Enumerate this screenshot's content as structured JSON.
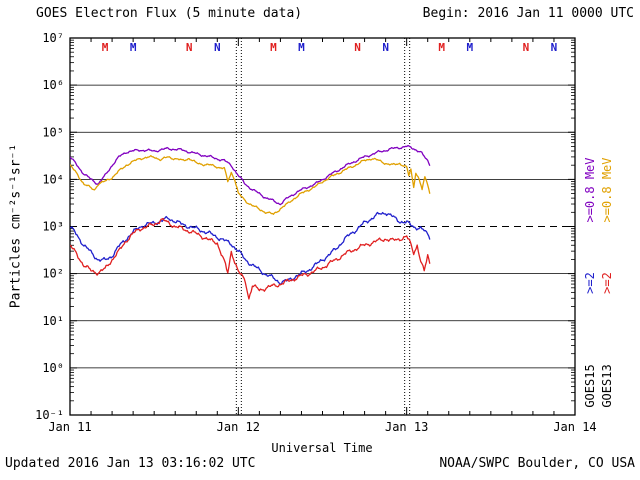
{
  "header": {
    "title": "GOES Electron Flux (5 minute data)",
    "begin_label": "Begin: 2016 Jan 11 0000 UTC"
  },
  "footer": {
    "updated": "Updated 2016 Jan 13 03:16:02 UTC",
    "source": "NOAA/SWPC Boulder, CO USA"
  },
  "right_labels": {
    "goes15_08": ">=0.8 MeV",
    "goes13_08": ">=0.8 MeV",
    "goes15_2": ">=2",
    "goes13_2": ">=2",
    "goes15_name": "GOES15",
    "goes13_name": "GOES13"
  },
  "colors": {
    "goes15_08": "#8000C0",
    "goes13_08": "#E0A000",
    "goes15_2": "#2020CC",
    "goes13_2": "#E02020",
    "axis": "#000000"
  },
  "chart_data": {
    "type": "line",
    "title": "GOES Electron Flux (5 minute data)",
    "xlabel": "Universal Time",
    "ylabel": "Particles cm⁻²s⁻¹sr⁻¹",
    "x_range_hours": [
      0,
      72
    ],
    "y_log_range": [
      -1,
      7
    ],
    "y_scale": "log10",
    "grid": "solid horizontal lines at each decade, dashed at 1000",
    "legend_position": "right, rotated",
    "threshold_flux": 1000,
    "day_boundaries_hours": [
      24,
      48
    ],
    "x_ticks": [
      {
        "t": 0,
        "label": "Jan 11"
      },
      {
        "t": 24,
        "label": "Jan 12"
      },
      {
        "t": 48,
        "label": "Jan 13"
      },
      {
        "t": 72,
        "label": "Jan 14"
      }
    ],
    "y_ticks": [
      {
        "exp": 7,
        "label": "10⁷"
      },
      {
        "exp": 6,
        "label": "10⁶"
      },
      {
        "exp": 5,
        "label": "10⁵"
      },
      {
        "exp": 4,
        "label": "10⁴"
      },
      {
        "exp": 3,
        "label": "10³"
      },
      {
        "exp": 2,
        "label": "10²"
      },
      {
        "exp": 1,
        "label": "10¹"
      },
      {
        "exp": 0,
        "label": "10⁰"
      },
      {
        "exp": -1,
        "label": "10⁻¹"
      }
    ],
    "noon_midnight_markers": [
      {
        "t": 5,
        "label": "M",
        "sat": "GOES13",
        "color": "#E02020"
      },
      {
        "t": 9,
        "label": "M",
        "sat": "GOES15",
        "color": "#2020CC"
      },
      {
        "t": 17,
        "label": "N",
        "sat": "GOES13",
        "color": "#E02020"
      },
      {
        "t": 21,
        "label": "N",
        "sat": "GOES15",
        "color": "#2020CC"
      },
      {
        "t": 29,
        "label": "M",
        "sat": "GOES13",
        "color": "#E02020"
      },
      {
        "t": 33,
        "label": "M",
        "sat": "GOES15",
        "color": "#2020CC"
      },
      {
        "t": 41,
        "label": "N",
        "sat": "GOES13",
        "color": "#E02020"
      },
      {
        "t": 45,
        "label": "N",
        "sat": "GOES15",
        "color": "#2020CC"
      },
      {
        "t": 53,
        "label": "M",
        "sat": "GOES13",
        "color": "#E02020"
      },
      {
        "t": 57,
        "label": "M",
        "sat": "GOES15",
        "color": "#2020CC"
      },
      {
        "t": 65,
        "label": "N",
        "sat": "GOES13",
        "color": "#E02020"
      },
      {
        "t": 69,
        "label": "N",
        "sat": "GOES15",
        "color": "#2020CC"
      }
    ],
    "series": [
      {
        "name": "GOES15 >=0.8 MeV",
        "color": "#8000C0",
        "points": [
          [
            0,
            30000
          ],
          [
            1,
            20000
          ],
          [
            2,
            13000
          ],
          [
            3,
            10000
          ],
          [
            4,
            8000
          ],
          [
            5,
            12000
          ],
          [
            6,
            20000
          ],
          [
            7,
            30000
          ],
          [
            8,
            38000
          ],
          [
            10,
            42000
          ],
          [
            12,
            40000
          ],
          [
            14,
            45000
          ],
          [
            16,
            42000
          ],
          [
            18,
            35000
          ],
          [
            20,
            30000
          ],
          [
            22,
            25000
          ],
          [
            23,
            20000
          ],
          [
            24,
            12000
          ],
          [
            25,
            8000
          ],
          [
            26,
            6000
          ],
          [
            27,
            5000
          ],
          [
            28,
            4000
          ],
          [
            29,
            3500
          ],
          [
            30,
            3000
          ],
          [
            31,
            4000
          ],
          [
            32,
            5000
          ],
          [
            33,
            6000
          ],
          [
            34,
            7000
          ],
          [
            35,
            8000
          ],
          [
            36,
            10000
          ],
          [
            38,
            15000
          ],
          [
            40,
            22000
          ],
          [
            42,
            30000
          ],
          [
            44,
            38000
          ],
          [
            46,
            45000
          ],
          [
            48,
            50000
          ],
          [
            49,
            45000
          ],
          [
            50,
            38000
          ],
          [
            50.5,
            30000
          ],
          [
            51,
            25000
          ],
          [
            51.3,
            20000
          ]
        ]
      },
      {
        "name": "GOES13 >=0.8 MeV",
        "color": "#E0A000",
        "points": [
          [
            0,
            20000
          ],
          [
            1,
            13000
          ],
          [
            2,
            8000
          ],
          [
            3,
            6500
          ],
          [
            3.5,
            6000
          ],
          [
            4,
            8000
          ],
          [
            5,
            9000
          ],
          [
            6,
            11000
          ],
          [
            7,
            15000
          ],
          [
            8,
            20000
          ],
          [
            10,
            28000
          ],
          [
            12,
            30000
          ],
          [
            13,
            26000
          ],
          [
            14,
            30000
          ],
          [
            16,
            25000
          ],
          [
            17,
            28000
          ],
          [
            18,
            22000
          ],
          [
            20,
            20000
          ],
          [
            22,
            17000
          ],
          [
            22.5,
            9000
          ],
          [
            23,
            14000
          ],
          [
            23.5,
            10000
          ],
          [
            24,
            5000
          ],
          [
            25,
            3500
          ],
          [
            26,
            2800
          ],
          [
            27,
            2300
          ],
          [
            28,
            2000
          ],
          [
            29,
            1800
          ],
          [
            30,
            2400
          ],
          [
            31,
            3000
          ],
          [
            32,
            4000
          ],
          [
            33,
            5000
          ],
          [
            34,
            6000
          ],
          [
            35,
            7000
          ],
          [
            36,
            9000
          ],
          [
            38,
            13000
          ],
          [
            40,
            18000
          ],
          [
            42,
            25000
          ],
          [
            43,
            28000
          ],
          [
            44,
            25000
          ],
          [
            45,
            22000
          ],
          [
            46,
            20000
          ],
          [
            47,
            22000
          ],
          [
            48,
            18000
          ],
          [
            48.3,
            12000
          ],
          [
            48.6,
            16000
          ],
          [
            49,
            7000
          ],
          [
            49.3,
            14000
          ],
          [
            49.8,
            10000
          ],
          [
            50.2,
            6000
          ],
          [
            50.6,
            11000
          ],
          [
            51,
            8000
          ],
          [
            51.3,
            5000
          ]
        ]
      },
      {
        "name": "GOES15 >=2 MeV",
        "color": "#2020CC",
        "points": [
          [
            0,
            1000
          ],
          [
            1,
            650
          ],
          [
            2,
            400
          ],
          [
            3,
            280
          ],
          [
            4,
            200
          ],
          [
            5,
            190
          ],
          [
            6,
            240
          ],
          [
            7,
            380
          ],
          [
            8,
            550
          ],
          [
            9,
            750
          ],
          [
            10,
            1000
          ],
          [
            11,
            1100
          ],
          [
            12,
            1200
          ],
          [
            13,
            1300
          ],
          [
            14,
            1500
          ],
          [
            15,
            1300
          ],
          [
            16,
            1100
          ],
          [
            17,
            1000
          ],
          [
            18,
            900
          ],
          [
            19,
            800
          ],
          [
            20,
            700
          ],
          [
            21,
            600
          ],
          [
            22,
            500
          ],
          [
            23,
            430
          ],
          [
            24,
            300
          ],
          [
            25,
            200
          ],
          [
            26,
            150
          ],
          [
            27,
            120
          ],
          [
            28,
            95
          ],
          [
            29,
            80
          ],
          [
            30,
            65
          ],
          [
            31,
            70
          ],
          [
            32,
            85
          ],
          [
            33,
            100
          ],
          [
            34,
            120
          ],
          [
            35,
            150
          ],
          [
            36,
            200
          ],
          [
            37,
            250
          ],
          [
            38,
            350
          ],
          [
            39,
            500
          ],
          [
            40,
            700
          ],
          [
            41,
            900
          ],
          [
            42,
            1200
          ],
          [
            43,
            1500
          ],
          [
            44,
            1800
          ],
          [
            45,
            2000
          ],
          [
            46,
            1600
          ],
          [
            47,
            1300
          ],
          [
            48,
            1200
          ],
          [
            49,
            1000
          ],
          [
            50,
            900
          ],
          [
            50.5,
            800
          ],
          [
            51,
            700
          ],
          [
            51.3,
            600
          ]
        ]
      },
      {
        "name": "GOES13 >=2 MeV",
        "color": "#E02020",
        "points": [
          [
            0,
            400
          ],
          [
            1,
            250
          ],
          [
            2,
            150
          ],
          [
            3,
            115
          ],
          [
            4,
            105
          ],
          [
            5,
            125
          ],
          [
            6,
            200
          ],
          [
            7,
            300
          ],
          [
            8,
            500
          ],
          [
            9,
            700
          ],
          [
            10,
            900
          ],
          [
            11,
            1000
          ],
          [
            12,
            1100
          ],
          [
            13,
            1400
          ],
          [
            14,
            1200
          ],
          [
            15,
            1000
          ],
          [
            16,
            900
          ],
          [
            17,
            800
          ],
          [
            18,
            700
          ],
          [
            19,
            600
          ],
          [
            20,
            500
          ],
          [
            21,
            450
          ],
          [
            22,
            180
          ],
          [
            22.5,
            100
          ],
          [
            23,
            300
          ],
          [
            23.5,
            180
          ],
          [
            24,
            110
          ],
          [
            25,
            70
          ],
          [
            25.5,
            30
          ],
          [
            26,
            55
          ],
          [
            27,
            45
          ],
          [
            28,
            50
          ],
          [
            29,
            55
          ],
          [
            30,
            60
          ],
          [
            31,
            68
          ],
          [
            32,
            78
          ],
          [
            33,
            90
          ],
          [
            34,
            100
          ],
          [
            35,
            115
          ],
          [
            36,
            135
          ],
          [
            37,
            165
          ],
          [
            38,
            200
          ],
          [
            39,
            250
          ],
          [
            40,
            300
          ],
          [
            41,
            350
          ],
          [
            42,
            400
          ],
          [
            43,
            450
          ],
          [
            44,
            500
          ],
          [
            45,
            550
          ],
          [
            46,
            500
          ],
          [
            47,
            550
          ],
          [
            48,
            600
          ],
          [
            48.5,
            450
          ],
          [
            49,
            280
          ],
          [
            49.5,
            400
          ],
          [
            50,
            180
          ],
          [
            50.5,
            110
          ],
          [
            51,
            250
          ],
          [
            51.3,
            170
          ]
        ]
      }
    ]
  }
}
